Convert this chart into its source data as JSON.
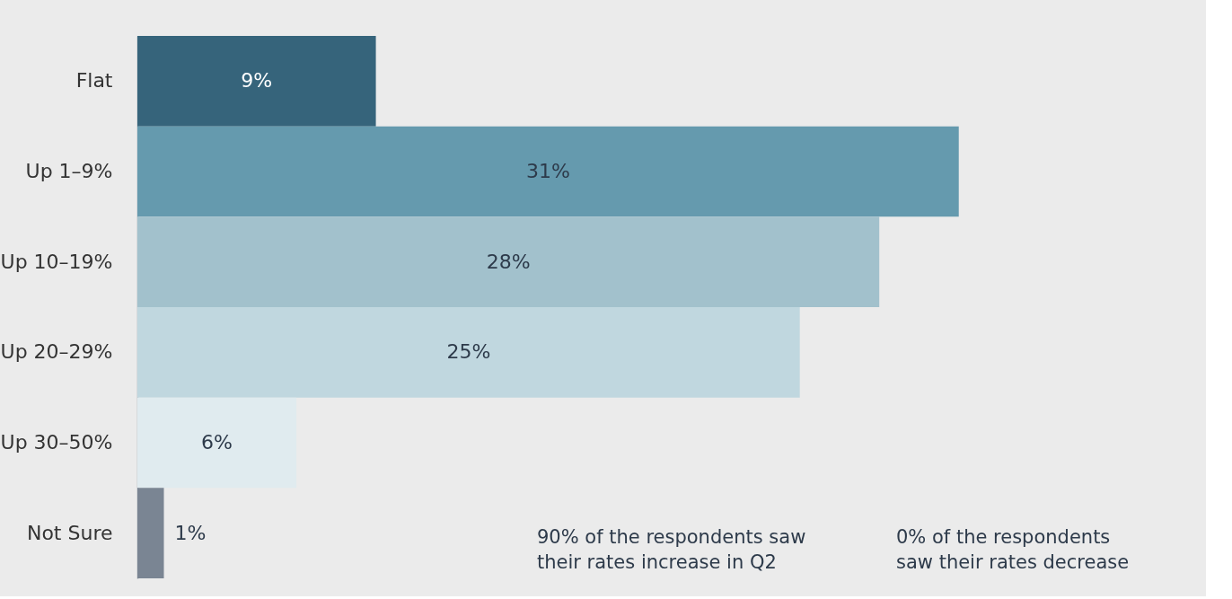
{
  "chart_data": {
    "type": "bar",
    "orientation": "horizontal",
    "categories": [
      "Flat",
      "Up 1–9%",
      "Up 10–19%",
      "Up 20–29%",
      "Up 30–50%",
      "Not Sure"
    ],
    "values": [
      9,
      31,
      28,
      25,
      6,
      1
    ],
    "colors": [
      "#36647b",
      "#659aae",
      "#a2c1cc",
      "#c0d7df",
      "#e0ebef",
      "#7a8593"
    ],
    "value_labels": [
      "9%",
      "31%",
      "28%",
      "25%",
      "6%",
      "1%"
    ],
    "annotations": [
      "90% of the respondents saw\ntheir rates increase in Q2",
      "0% of the respondents\nsaw their rates decrease"
    ],
    "grid": false
  }
}
